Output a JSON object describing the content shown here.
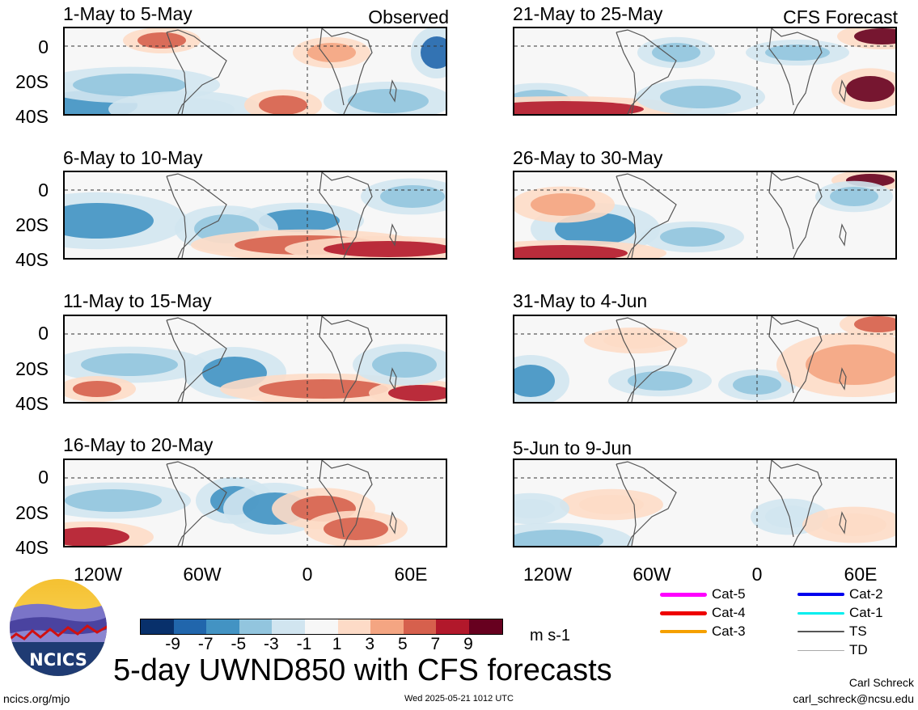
{
  "panels_left": [
    {
      "title": "1-May to 5-May",
      "label": "Observed"
    },
    {
      "title": "6-May to 10-May",
      "label": ""
    },
    {
      "title": "11-May to 15-May",
      "label": ""
    },
    {
      "title": "16-May to 20-May",
      "label": ""
    }
  ],
  "panels_right": [
    {
      "title": "21-May to 25-May",
      "label": "CFS Forecast"
    },
    {
      "title": "26-May to 30-May",
      "label": ""
    },
    {
      "title": "31-May to 4-Jun",
      "label": ""
    },
    {
      "title": "5-Jun to 9-Jun",
      "label": ""
    }
  ],
  "y_ticks": [
    "0",
    "20S",
    "40S"
  ],
  "x_ticks": [
    "120W",
    "60W",
    "0",
    "60E"
  ],
  "colorbar": {
    "labels": [
      "-9",
      "-7",
      "-5",
      "-3",
      "-1",
      "1",
      "3",
      "5",
      "7",
      "9"
    ],
    "colors": [
      "#08306b",
      "#2166ac",
      "#4393c3",
      "#92c5de",
      "#d1e5f0",
      "#f7f7f7",
      "#fddbc7",
      "#f4a582",
      "#d6604d",
      "#b2182b",
      "#67001f"
    ],
    "units": "m s-1"
  },
  "main_title": "5-day UWND850 with CFS forecasts",
  "legend": [
    {
      "label": "Cat-5",
      "color": "#ff00ff"
    },
    {
      "label": "Cat-4",
      "color": "#ee0000"
    },
    {
      "label": "Cat-3",
      "color": "#f5a000"
    },
    {
      "label": "Cat-2",
      "color": "#0000ee"
    },
    {
      "label": "Cat-1",
      "color": "#00eeee"
    },
    {
      "label": "TS",
      "color": "#555555"
    },
    {
      "label": "TD",
      "color": "#aaaaaa"
    }
  ],
  "logo_text": "NCICS",
  "footer": {
    "left": "ncics.org/mjo",
    "center": "Wed 2025-05-21 1012 UTC",
    "author": "Carl Schreck",
    "email": "carl_schreck@ncsu.edu"
  }
}
